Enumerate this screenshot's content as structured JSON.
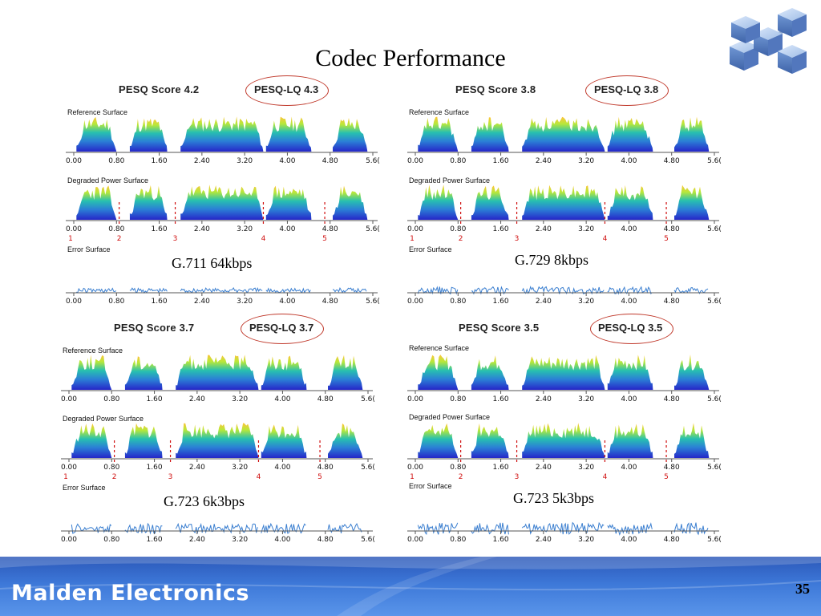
{
  "slide": {
    "title": "Codec Performance",
    "page_number": "35"
  },
  "footer": {
    "brand": "Malden Electronics"
  },
  "logo": {
    "icon": "network-cubes-icon"
  },
  "colors": {
    "oval": "#c0392b",
    "marker": "#d01010",
    "footer": "#3d78d8",
    "error_trace": "#3b7fd0"
  },
  "surface_titles": {
    "reference": "Reference Surface",
    "degraded": "Degraded Power Surface",
    "error": "Error Surface"
  },
  "time_axis_ticks": [
    "0.00",
    "0.80",
    "1.60",
    "2.40",
    "3.20",
    "4.00",
    "4.80",
    "5.6("
  ],
  "panels": [
    {
      "id": "g711",
      "pesq": "PESQ Score 4.2",
      "pesq_lq": "PESQ-LQ 4.3",
      "codec": "G.711 64kbps",
      "degraded_markers": [
        {
          "label": "1",
          "t": 0.0
        },
        {
          "label": "2",
          "t": 0.85
        },
        {
          "label": "3",
          "t": 1.9
        },
        {
          "label": "4",
          "t": 3.55
        },
        {
          "label": "5",
          "t": 4.7
        }
      ]
    },
    {
      "id": "g729",
      "pesq": "PESQ Score 3.8",
      "pesq_lq": "PESQ-LQ 3.8",
      "codec": "G.729 8kbps",
      "degraded_markers": [
        {
          "label": "1",
          "t": 0.0
        },
        {
          "label": "2",
          "t": 0.85
        },
        {
          "label": "3",
          "t": 1.9
        },
        {
          "label": "4",
          "t": 3.55
        },
        {
          "label": "5",
          "t": 4.7
        }
      ]
    },
    {
      "id": "g723_6k3",
      "pesq": "PESQ Score 3.7",
      "pesq_lq": "PESQ-LQ 3.7",
      "codec": "G.723 6k3bps",
      "degraded_markers": [
        {
          "label": "1",
          "t": 0.0
        },
        {
          "label": "2",
          "t": 0.85
        },
        {
          "label": "3",
          "t": 1.9
        },
        {
          "label": "4",
          "t": 3.55
        },
        {
          "label": "5",
          "t": 4.7
        }
      ]
    },
    {
      "id": "g723_5k3",
      "pesq": "PESQ Score 3.5",
      "pesq_lq": "PESQ-LQ 3.5",
      "codec": "G.723 5k3bps",
      "degraded_markers": [
        {
          "label": "1",
          "t": 0.0
        },
        {
          "label": "2",
          "t": 0.85
        },
        {
          "label": "3",
          "t": 1.9
        },
        {
          "label": "4",
          "t": 3.55
        },
        {
          "label": "5",
          "t": 4.7
        }
      ]
    }
  ]
}
